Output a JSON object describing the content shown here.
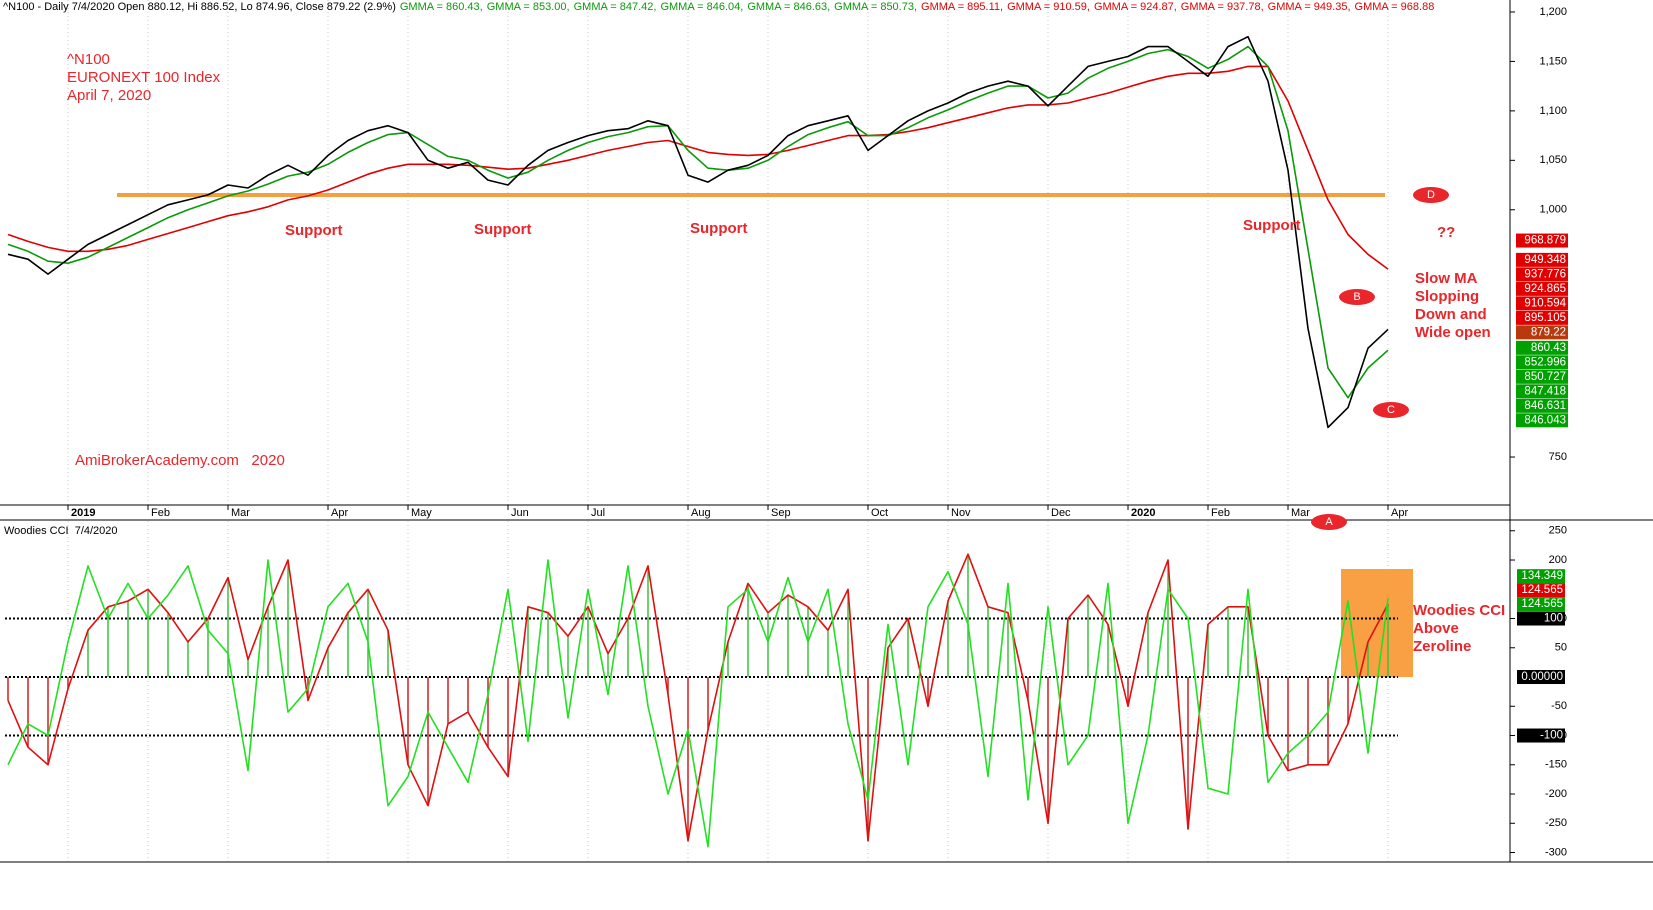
{
  "chart_data": [
    {
      "type": "line",
      "title": "^N100 - Daily 7/4/2020 Open 880.12, Hi 886.52, Lo 874.96, Close 879.22 (2.9%)",
      "header_items": [
        {
          "text": "GMMA = 860.43,",
          "color": "#0a9a0a"
        },
        {
          "text": "GMMA = 853.00,",
          "color": "#0a9a0a"
        },
        {
          "text": "GMMA = 847.42,",
          "color": "#0a9a0a"
        },
        {
          "text": "GMMA = 846.04,",
          "color": "#0a9a0a"
        },
        {
          "text": "GMMA = 846.63,",
          "color": "#0a9a0a"
        },
        {
          "text": "GMMA = 850.73,",
          "color": "#0a9a0a"
        },
        {
          "text": "GMMA = 895.11,",
          "color": "#e00000"
        },
        {
          "text": "GMMA = 910.59,",
          "color": "#e00000"
        },
        {
          "text": "GMMA = 924.87,",
          "color": "#e00000"
        },
        {
          "text": "GMMA = 937.78,",
          "color": "#e00000"
        },
        {
          "text": "GMMA = 949.35,",
          "color": "#e00000"
        },
        {
          "text": "GMMA = 968.88",
          "color": "#e00000"
        }
      ],
      "categories": [
        null,
        null,
        null,
        "2019",
        null,
        null,
        null,
        "Feb",
        null,
        null,
        null,
        "Mar",
        null,
        null,
        null,
        null,
        "Apr",
        null,
        null,
        null,
        "May",
        null,
        null,
        null,
        null,
        "Jun",
        null,
        null,
        null,
        "Jul",
        null,
        null,
        null,
        null,
        "Aug",
        null,
        null,
        null,
        "Sep",
        null,
        null,
        null,
        null,
        "Oct",
        null,
        null,
        null,
        "Nov",
        null,
        null,
        null,
        null,
        "Dec",
        null,
        null,
        null,
        "2020",
        null,
        null,
        null,
        "Feb",
        null,
        null,
        null,
        "Mar",
        null,
        null,
        null,
        null,
        "Apr"
      ],
      "series": [
        {
          "color": "#e00000",
          "values": [
            975,
            968,
            962,
            958,
            958,
            960,
            964,
            970,
            976,
            982,
            988,
            994,
            998,
            1003,
            1010,
            1014,
            1020,
            1028,
            1036,
            1042,
            1046,
            1046,
            1046,
            1045,
            1043,
            1041,
            1042,
            1046,
            1050,
            1055,
            1060,
            1064,
            1068,
            1070,
            1064,
            1058,
            1056,
            1055,
            1056,
            1060,
            1065,
            1070,
            1075,
            1075,
            1076,
            1079,
            1083,
            1088,
            1093,
            1098,
            1103,
            1106,
            1106,
            1108,
            1113,
            1118,
            1124,
            1130,
            1135,
            1138,
            1138,
            1140,
            1145,
            1145,
            1110,
            1060,
            1010,
            975,
            955,
            940
          ]
        },
        {
          "color": "#0a9a0a",
          "values": [
            965,
            958,
            948,
            946,
            952,
            962,
            972,
            982,
            992,
            1000,
            1007,
            1014,
            1019,
            1026,
            1034,
            1038,
            1046,
            1058,
            1068,
            1076,
            1078,
            1066,
            1054,
            1050,
            1040,
            1032,
            1038,
            1050,
            1060,
            1068,
            1074,
            1078,
            1084,
            1085,
            1060,
            1042,
            1040,
            1042,
            1050,
            1064,
            1076,
            1083,
            1089,
            1075,
            1075,
            1083,
            1093,
            1101,
            1110,
            1118,
            1125,
            1125,
            1113,
            1118,
            1133,
            1143,
            1150,
            1158,
            1162,
            1155,
            1143,
            1152,
            1165,
            1145,
            1080,
            960,
            840,
            810,
            840,
            858
          ]
        },
        {
          "color": "#000000",
          "values": [
            955,
            950,
            935,
            950,
            965,
            975,
            985,
            995,
            1005,
            1010,
            1015,
            1025,
            1022,
            1035,
            1045,
            1035,
            1055,
            1070,
            1080,
            1085,
            1078,
            1050,
            1042,
            1048,
            1030,
            1025,
            1045,
            1060,
            1068,
            1075,
            1080,
            1082,
            1090,
            1085,
            1035,
            1028,
            1040,
            1045,
            1055,
            1075,
            1085,
            1090,
            1095,
            1060,
            1075,
            1090,
            1100,
            1108,
            1118,
            1125,
            1130,
            1125,
            1105,
            1125,
            1145,
            1150,
            1155,
            1165,
            1165,
            1150,
            1135,
            1165,
            1175,
            1130,
            1040,
            880,
            780,
            800,
            860,
            879
          ]
        }
      ],
      "ylim": [
        701.5,
        1212.1
      ],
      "yticks": [
        {
          "value": 1200,
          "label": "1,200"
        },
        {
          "value": 1150,
          "label": "1,150"
        },
        {
          "value": 1100,
          "label": "1,100"
        },
        {
          "value": 1050,
          "label": "1,050"
        },
        {
          "value": 1000,
          "label": "1,000"
        },
        750
      ],
      "grid": true,
      "value_boxes": [
        {
          "value": 968.879,
          "color": "#e00000"
        },
        {
          "value": 949.348,
          "color": "#e00000"
        },
        {
          "value": 937.776,
          "color": "#e00000"
        },
        {
          "value": 924.865,
          "color": "#e00000"
        },
        {
          "value": 910.594,
          "color": "#e00000"
        },
        {
          "value": 895.105,
          "color": "#e00000"
        },
        {
          "value": 879.22,
          "color": "#b8390e"
        },
        {
          "value": 860.43,
          "color": "#00a000"
        },
        {
          "value": 852.996,
          "color": "#00a000"
        },
        {
          "value": 850.727,
          "color": "#00a000"
        },
        {
          "value": 847.418,
          "color": "#00a000"
        },
        {
          "value": 846.631,
          "color": "#00a000"
        },
        {
          "value": 846.043,
          "color": "#00a000"
        }
      ],
      "support_level": 1015,
      "support_color": "#f5a040",
      "annotations": {
        "symbol": "^N100",
        "index_name": "EURONEXT 100 Index",
        "date": "April 7, 2020",
        "watermark": "AmiBrokerAcademy.com   2020",
        "support": [
          "Support",
          "Support",
          "Support",
          "Support"
        ],
        "note": [
          "Slow MA",
          "Slopping",
          "Down and",
          "Wide open"
        ],
        "question": "??",
        "markers": [
          "A",
          "B",
          "C",
          "D"
        ]
      }
    },
    {
      "type": "line",
      "title": "Woodies CCI  7/4/2020",
      "series": [
        {
          "color": "#e01010",
          "histogram": true,
          "values": [
            -40,
            -120,
            -150,
            -20,
            80,
            120,
            130,
            150,
            110,
            60,
            100,
            170,
            30,
            120,
            200,
            -40,
            50,
            110,
            150,
            80,
            -150,
            -220,
            -80,
            -60,
            -120,
            -170,
            120,
            110,
            70,
            120,
            40,
            100,
            190,
            -30,
            -280,
            -90,
            60,
            160,
            110,
            140,
            120,
            80,
            150,
            -280,
            50,
            100,
            -50,
            130,
            210,
            120,
            110,
            -40,
            -250,
            100,
            140,
            90,
            -50,
            110,
            200,
            -260,
            90,
            120,
            120,
            -100,
            -160,
            -150,
            -150,
            -80,
            60,
            124.565
          ]
        },
        {
          "color": "#22e022",
          "values": [
            -150,
            -80,
            -100,
            60,
            190,
            100,
            160,
            100,
            140,
            190,
            80,
            40,
            -160,
            200,
            -60,
            -20,
            120,
            160,
            60,
            -220,
            -170,
            -60,
            -120,
            -180,
            -30,
            150,
            -110,
            200,
            -70,
            150,
            -30,
            190,
            -50,
            -200,
            -90,
            -290,
            120,
            150,
            60,
            170,
            60,
            150,
            -80,
            -210,
            90,
            -150,
            120,
            180,
            90,
            -170,
            160,
            -210,
            120,
            -150,
            -100,
            160,
            -250,
            -100,
            150,
            100,
            -190,
            -200,
            150,
            -180,
            -130,
            -100,
            -60,
            130,
            -130,
            134.349
          ]
        }
      ],
      "hist_colors": [
        "#40c040",
        "#d02020"
      ],
      "ylim": [
        -316.2,
        266.7
      ],
      "yticks": [
        250,
        200,
        100,
        50,
        -50,
        -100,
        -150,
        -200,
        -250,
        -300
      ],
      "levels": [
        100,
        0,
        -100
      ],
      "value_boxes": [
        {
          "value": 134.349,
          "color": "#00a000"
        },
        {
          "value": 124.565,
          "color": "#e00000"
        },
        {
          "value": 124.565,
          "color": "#00a000"
        },
        {
          "value": 100,
          "color": "#000000"
        },
        {
          "value": 0,
          "label": "0.00000",
          "color": "#000000"
        },
        {
          "value": -100,
          "color": "#000000"
        }
      ],
      "note": [
        "Woodies CCI",
        "Above",
        "Zeroline"
      ]
    }
  ]
}
